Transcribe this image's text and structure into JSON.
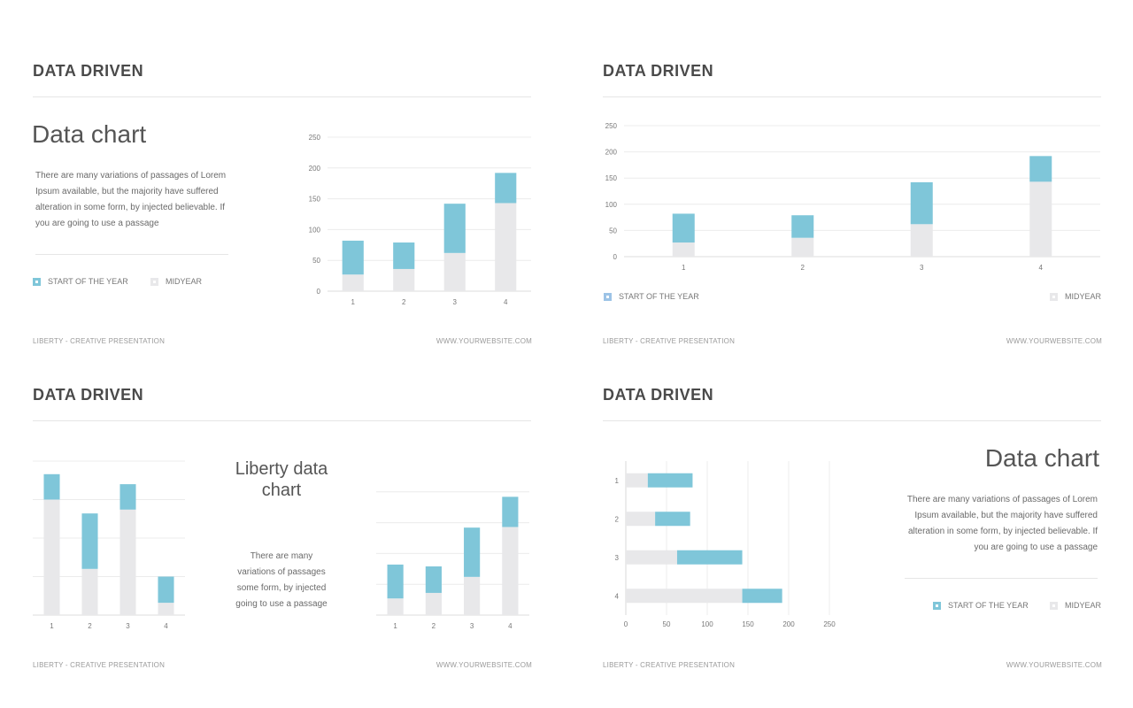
{
  "slides": [
    {
      "heading": "DATA DRIVEN",
      "title": "Data chart",
      "description": "There are many variations of passages of Lorem Ipsum available, but the majority have suffered alteration in some form, by injected believable. If you are going to use a passage",
      "legend": [
        "START OF THE YEAR",
        "MIDYEAR"
      ],
      "footer_left": "LIBERTY - CREATIVE PRESENTATION",
      "footer_right": "WWW.YOURWEBSITE.COM"
    },
    {
      "heading": "DATA DRIVEN",
      "legend": [
        "START OF THE YEAR",
        "MIDYEAR"
      ],
      "footer_left": "LIBERTY - CREATIVE PRESENTATION",
      "footer_right": "WWW.YOURWEBSITE.COM"
    },
    {
      "heading": "DATA DRIVEN",
      "title": "Liberty data chart",
      "description": "There are many variations of passages some form, by injected going to use a passage",
      "footer_left": "LIBERTY - CREATIVE PRESENTATION",
      "footer_right": "WWW.YOURWEBSITE.COM"
    },
    {
      "heading": "DATA DRIVEN",
      "title": "Data chart",
      "description": "There are many variations of passages of Lorem Ipsum available, but the majority have suffered alteration in some form, by injected believable. If you are going to use a passage",
      "legend": [
        "START OF THE YEAR",
        "MIDYEAR"
      ],
      "footer_left": "LIBERTY - CREATIVE PRESENTATION",
      "footer_right": "WWW.YOURWEBSITE.COM"
    }
  ],
  "colors": {
    "start": "#7fc6d9",
    "mid": "#e8e8ea",
    "grid": "#ececec",
    "text": "#777777"
  },
  "chart_data": [
    {
      "type": "bar",
      "stacked": true,
      "orientation": "vertical",
      "categories": [
        "1",
        "2",
        "3",
        "4"
      ],
      "series": [
        {
          "name": "MIDYEAR",
          "values": [
            27,
            36,
            62,
            143
          ]
        },
        {
          "name": "START OF THE YEAR",
          "values": [
            55,
            43,
            80,
            49
          ]
        }
      ],
      "ylim": [
        0,
        250
      ],
      "yticks": [
        0,
        50,
        100,
        150,
        200,
        250
      ],
      "grid": true,
      "legend": "bottom-left"
    },
    {
      "type": "bar",
      "stacked": true,
      "orientation": "vertical",
      "categories": [
        "1",
        "2",
        "3",
        "4"
      ],
      "series": [
        {
          "name": "MIDYEAR",
          "values": [
            27,
            36,
            62,
            143
          ]
        },
        {
          "name": "START OF THE YEAR",
          "values": [
            55,
            43,
            80,
            49
          ]
        }
      ],
      "ylim": [
        0,
        250
      ],
      "yticks": [
        0,
        50,
        100,
        150,
        200,
        250
      ],
      "grid": true,
      "legend": "bottom"
    },
    {
      "type": "bar",
      "stacked": true,
      "orientation": "vertical",
      "categories": [
        "1",
        "2",
        "3",
        "4"
      ],
      "series": [
        {
          "name": "MIDYEAR",
          "values": [
            150,
            60,
            137,
            16
          ]
        },
        {
          "name": "START OF THE YEAR",
          "values": [
            33,
            72,
            33,
            34
          ]
        }
      ],
      "ylim": [
        0,
        200
      ],
      "grid": true
    },
    {
      "type": "bar",
      "stacked": true,
      "orientation": "vertical",
      "categories": [
        "1",
        "2",
        "3",
        "4"
      ],
      "series": [
        {
          "name": "MIDYEAR",
          "values": [
            27,
            36,
            62,
            143
          ]
        },
        {
          "name": "START OF THE YEAR",
          "values": [
            55,
            43,
            80,
            49
          ]
        }
      ],
      "ylim": [
        0,
        250
      ],
      "grid": true
    },
    {
      "type": "bar",
      "stacked": true,
      "orientation": "horizontal",
      "categories": [
        "1",
        "2",
        "3",
        "4"
      ],
      "series": [
        {
          "name": "MIDYEAR",
          "values": [
            27,
            36,
            63,
            143
          ]
        },
        {
          "name": "START OF THE YEAR",
          "values": [
            55,
            43,
            80,
            49
          ]
        }
      ],
      "xlim": [
        0,
        250
      ],
      "xticks": [
        0,
        50,
        100,
        150,
        200,
        250
      ],
      "grid": true,
      "legend": "bottom-right"
    }
  ]
}
